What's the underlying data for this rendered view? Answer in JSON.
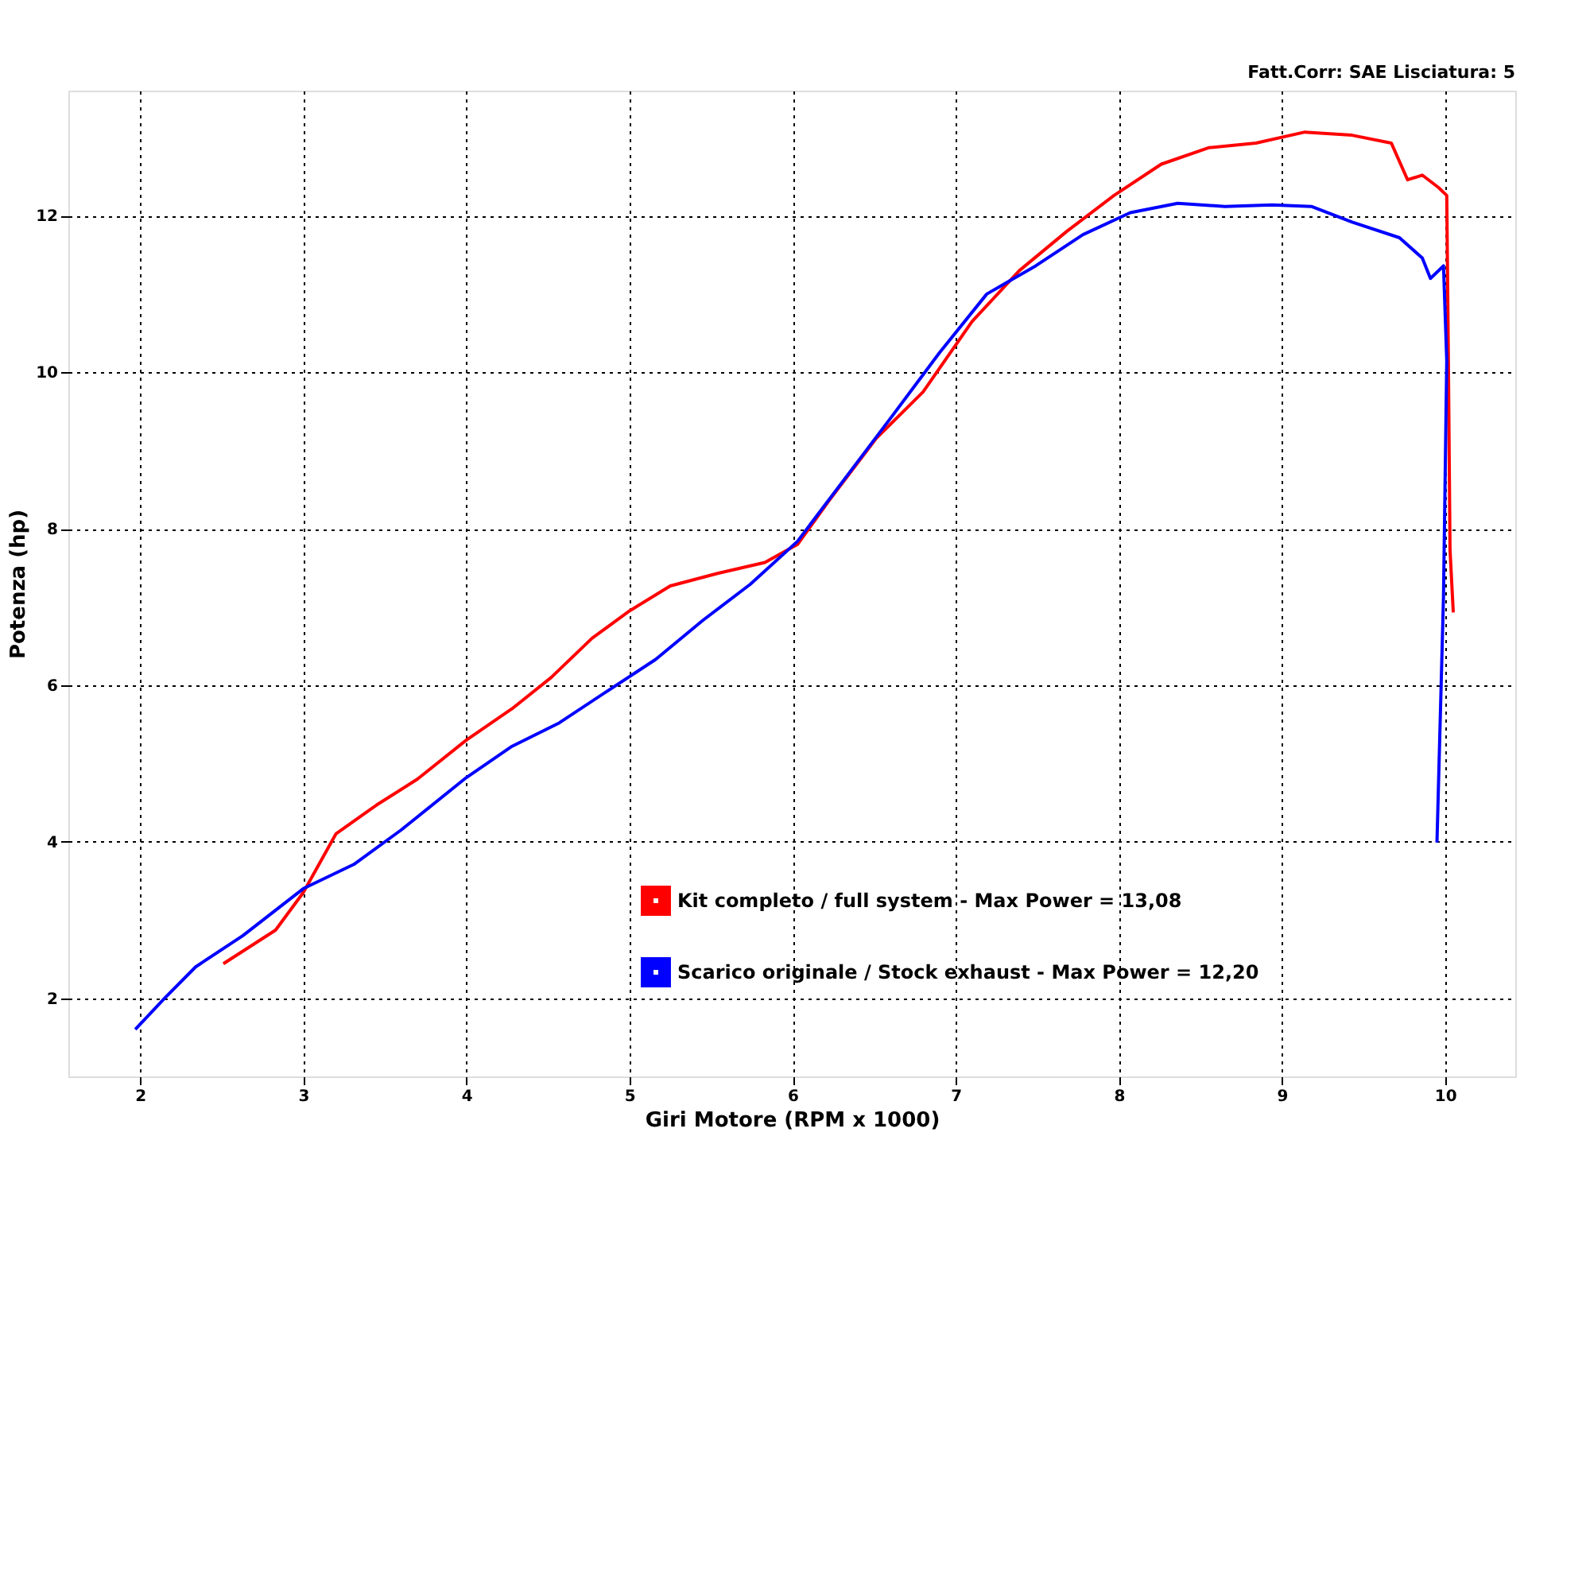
{
  "chart_data": {
    "type": "line",
    "xlabel": "Giri Motore (RPM x 1000)",
    "ylabel": "Potenza (hp)",
    "annotations": [
      "Fatt.Corr: SAE  Lisciatura: 5"
    ],
    "xlim": [
      1.56,
      10.43
    ],
    "xticks": [
      2,
      3,
      4,
      5,
      6,
      7,
      8,
      9,
      10
    ],
    "ylim": [
      1,
      13.6
    ],
    "yticks": [
      2,
      4,
      6,
      8,
      10,
      12
    ],
    "grid": true,
    "legend": "bottom",
    "marker": "none",
    "line_style": "solid",
    "series": [
      {
        "name": "Kit completo / full system - Max Power = 13,08",
        "color": "#ff0000",
        "x": [
          2.51,
          2.83,
          3.0,
          3.2,
          3.45,
          3.7,
          4.0,
          4.28,
          4.52,
          4.77,
          5.0,
          5.25,
          5.54,
          5.83,
          6.03,
          6.22,
          6.51,
          6.8,
          7.1,
          7.39,
          7.68,
          7.97,
          8.26,
          8.55,
          8.84,
          9.14,
          9.43,
          9.67,
          9.77,
          9.86,
          9.96,
          10.01,
          10.02,
          10.03,
          10.05
        ],
        "values": [
          2.44,
          2.87,
          3.35,
          4.1,
          4.47,
          4.8,
          5.3,
          5.7,
          6.1,
          6.6,
          6.95,
          7.27,
          7.43,
          7.57,
          7.8,
          8.35,
          9.15,
          9.75,
          10.65,
          11.3,
          11.8,
          12.26,
          12.66,
          12.87,
          12.93,
          13.07,
          13.03,
          12.93,
          12.46,
          12.52,
          12.36,
          12.26,
          10.15,
          7.73,
          6.93
        ]
      },
      {
        "name": "Scarico originale / Stock exhaust - Max Power = 12,20",
        "color": "#0000ff",
        "x": [
          1.97,
          2.15,
          2.34,
          2.63,
          3.0,
          3.31,
          3.6,
          4.0,
          4.28,
          4.57,
          4.86,
          5.16,
          5.45,
          5.74,
          6.03,
          6.32,
          6.61,
          6.9,
          7.19,
          7.49,
          7.78,
          8.07,
          8.36,
          8.65,
          8.94,
          9.18,
          9.43,
          9.72,
          9.86,
          9.91,
          9.99,
          10.01,
          9.99,
          9.95
        ],
        "values": [
          1.6,
          2.0,
          2.4,
          2.8,
          3.4,
          3.71,
          4.15,
          4.82,
          5.22,
          5.52,
          5.92,
          6.33,
          6.83,
          7.29,
          7.84,
          8.64,
          9.44,
          10.25,
          11.0,
          11.36,
          11.76,
          12.04,
          12.16,
          12.12,
          12.14,
          12.12,
          11.92,
          11.72,
          11.46,
          11.2,
          11.36,
          10.15,
          7.13,
          3.99
        ]
      }
    ]
  }
}
